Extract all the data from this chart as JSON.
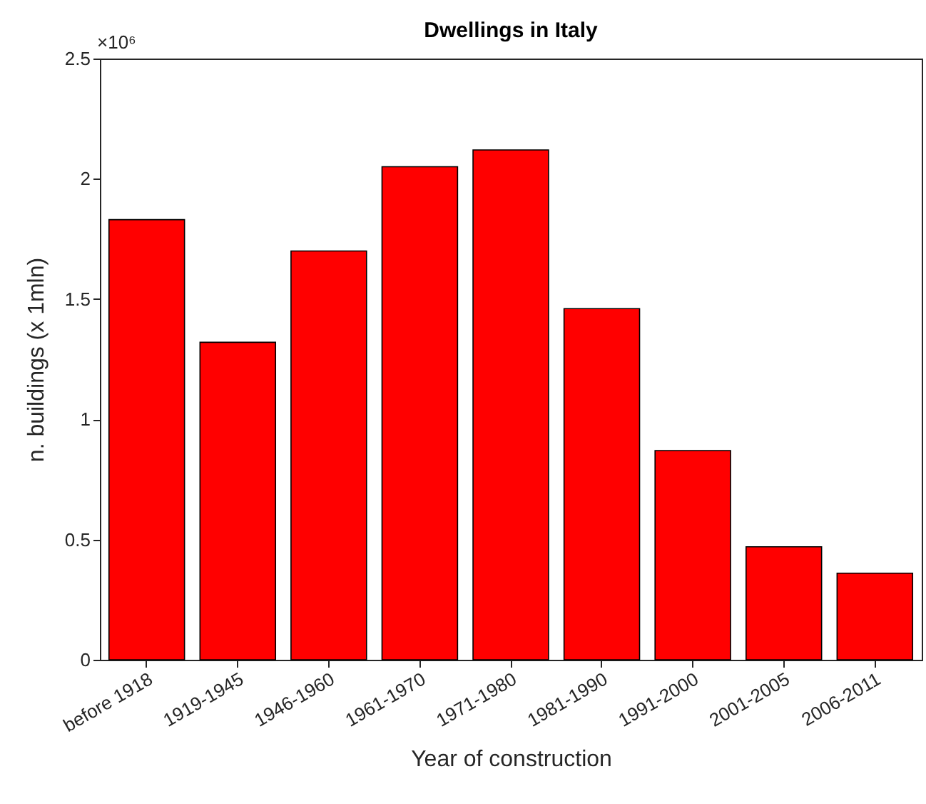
{
  "chart_data": {
    "type": "bar",
    "title": "Dwellings in Italy",
    "xlabel": "Year of construction",
    "ylabel": "n. buildings (x 1mln)",
    "categories": [
      "before 1918",
      "1919-1945",
      "1946-1960",
      "1961-1970",
      "1971-1980",
      "1981-1990",
      "1991-2000",
      "2001-2005",
      "2006-2011"
    ],
    "values": [
      1.83,
      1.32,
      1.7,
      2.05,
      2.12,
      1.46,
      0.87,
      0.47,
      0.36
    ],
    "color": "#ff0000",
    "ylim": [
      0,
      2.5
    ],
    "yticks": [
      0,
      0.5,
      1,
      1.5,
      2,
      2.5
    ],
    "annotations": [
      "×10⁶"
    ],
    "grid": false
  }
}
